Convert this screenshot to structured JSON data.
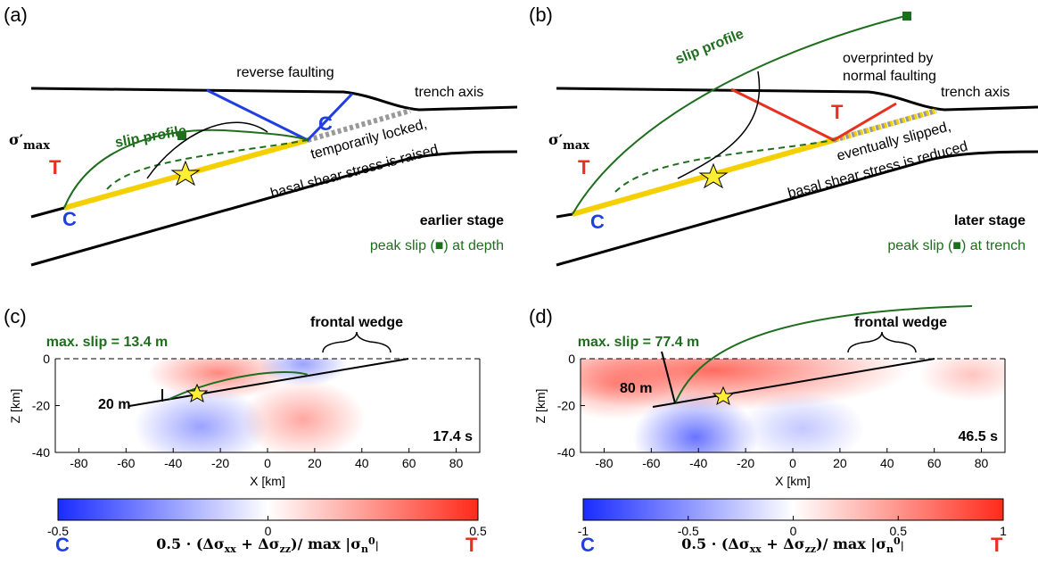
{
  "panel_a": {
    "label": "(a)",
    "reverse_faulting": "reverse faulting",
    "trench_axis": "trench axis",
    "locked_1": "temporarily locked,",
    "locked_2": "basal shear stress is raised",
    "slip_profile": "slip profile",
    "sigma": "σ′",
    "sigma_sub": "max",
    "T": "T",
    "C_upper": "C",
    "C_lower": "C",
    "stage": "earlier stage",
    "peak": "peak slip (■) at depth"
  },
  "panel_b": {
    "label": "(b)",
    "overprinted_1": "overprinted by",
    "overprinted_2": "normal faulting",
    "trench_axis": "trench axis",
    "slipped_1": "eventually slipped,",
    "slipped_2": "basal shear stress is reduced",
    "slip_profile": "slip profile",
    "sigma": "σ′",
    "sigma_sub": "max",
    "T_left": "T",
    "T_upper": "T",
    "C_lower": "C",
    "stage": "later stage",
    "peak": "peak slip (■) at trench"
  },
  "panel_c": {
    "label": "(c)",
    "max_slip": "max. slip = 13.4 m",
    "frontal_wedge": "frontal wedge",
    "slip_arrow": "20 m",
    "time": "17.4 s",
    "y_label": "Z [km]",
    "x_label": "X [km]",
    "yticks": [
      "0",
      "-20",
      "-40"
    ],
    "xticks": [
      "-80",
      "-60",
      "-40",
      "-20",
      "0",
      "20",
      "40",
      "60",
      "80"
    ],
    "colorbar_ticks": [
      "-0.5",
      "0",
      "0.5"
    ],
    "colorbar_C": "C",
    "colorbar_T": "T",
    "formula": [
      "0.5 · (Δσ",
      "xx",
      " + Δσ",
      "zz",
      ")/ max |σ",
      "n",
      "0",
      "|"
    ]
  },
  "panel_d": {
    "label": "(d)",
    "max_slip": "max. slip = 77.4 m",
    "frontal_wedge": "frontal wedge",
    "slip_arrow": "80 m",
    "time": "46.5 s",
    "y_label": "Z [km]",
    "x_label": "X [km]",
    "yticks": [
      "0",
      "-20",
      "-40"
    ],
    "xticks": [
      "-80",
      "-60",
      "-40",
      "-20",
      "0",
      "20",
      "40",
      "60",
      "80"
    ],
    "colorbar_ticks": [
      "-1",
      "-0.5",
      "0",
      "0.5",
      "1"
    ],
    "colorbar_C": "C",
    "colorbar_T": "T",
    "formula": [
      "0.5 · (Δσ",
      "xx",
      " + Δσ",
      "zz",
      ")/ max |σ",
      "n",
      "0",
      "|"
    ]
  }
}
